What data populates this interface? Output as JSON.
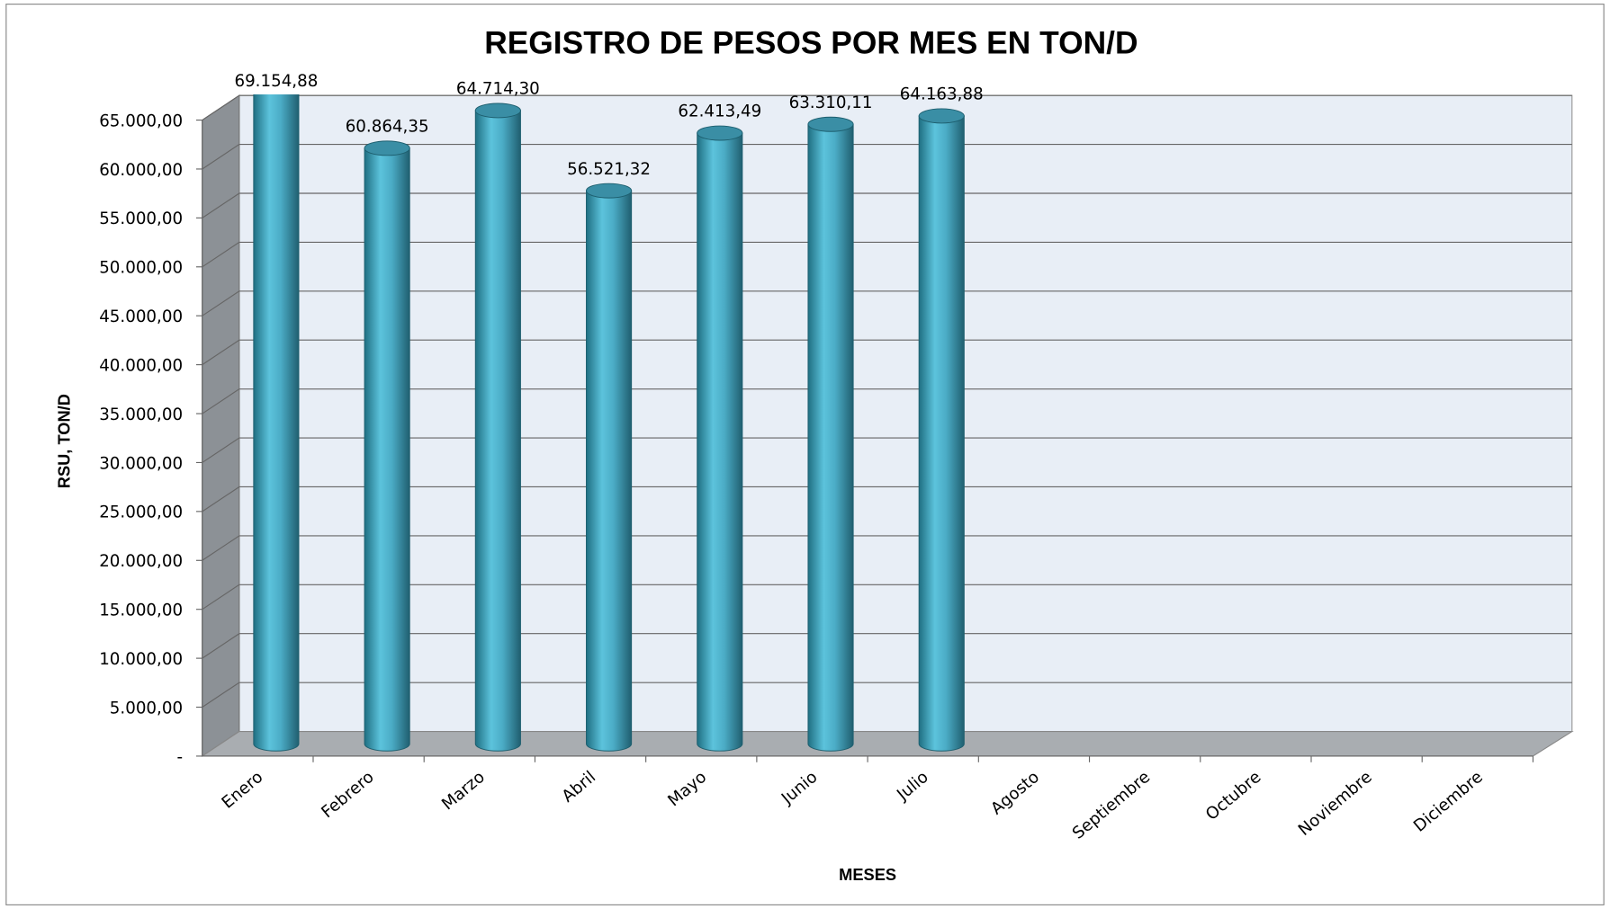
{
  "chart_data": {
    "type": "bar3d",
    "title": "REGISTRO DE PESOS POR MES EN TON/D",
    "x_label": "MESES",
    "y_label": "RSU, TON/D",
    "categories": [
      "Enero",
      "Febrero",
      "Marzo",
      "Abril",
      "Mayo",
      "Junio",
      "Julio",
      "Agosto",
      "Septiembre",
      "Octubre",
      "Noviembre",
      "Diciembre"
    ],
    "values": [
      69154.88,
      60864.35,
      64714.3,
      56521.32,
      62413.49,
      63310.11,
      64163.88,
      null,
      null,
      null,
      null,
      null
    ],
    "value_labels": [
      "69.154,88",
      "60.864,35",
      "64.714,30",
      "56.521,32",
      "62.413,49",
      "63.310,11",
      "64.163,88",
      null,
      null,
      null,
      null,
      null
    ],
    "color": "#4bacc6",
    "ylim": [
      0,
      65000
    ],
    "yticks": [
      {
        "value": 0,
        "label": "-"
      },
      {
        "value": 5000,
        "label": "5.000,00"
      },
      {
        "value": 10000,
        "label": "10.000,00"
      },
      {
        "value": 15000,
        "label": "15.000,00"
      },
      {
        "value": 20000,
        "label": "20.000,00"
      },
      {
        "value": 25000,
        "label": "25.000,00"
      },
      {
        "value": 30000,
        "label": "30.000,00"
      },
      {
        "value": 35000,
        "label": "35.000,00"
      },
      {
        "value": 40000,
        "label": "40.000,00"
      },
      {
        "value": 45000,
        "label": "45.000,00"
      },
      {
        "value": 50000,
        "label": "50.000,00"
      },
      {
        "value": 55000,
        "label": "55.000,00"
      },
      {
        "value": 60000,
        "label": "60.000,00"
      },
      {
        "value": 65000,
        "label": "65.000,00"
      }
    ],
    "grid": true
  }
}
